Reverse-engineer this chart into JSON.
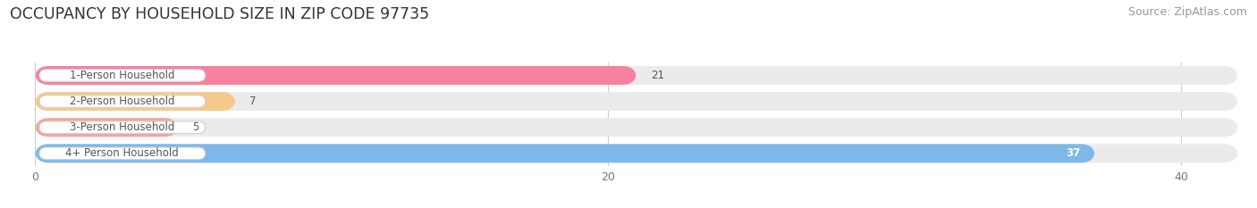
{
  "title": "OCCUPANCY BY HOUSEHOLD SIZE IN ZIP CODE 97735",
  "source": "Source: ZipAtlas.com",
  "categories": [
    "1-Person Household",
    "2-Person Household",
    "3-Person Household",
    "4+ Person Household"
  ],
  "values": [
    21,
    7,
    5,
    37
  ],
  "bar_colors": [
    "#f7819e",
    "#f5c98a",
    "#f2a898",
    "#7db8e8"
  ],
  "xlim": [
    -1,
    42
  ],
  "xticks": [
    0,
    20,
    40
  ],
  "background_color": "#ffffff",
  "row_bg_color": "#ebebeb",
  "title_fontsize": 12.5,
  "source_fontsize": 9,
  "label_fontsize": 8.5,
  "value_fontsize": 8.5,
  "figsize": [
    14.06,
    2.33
  ],
  "dpi": 100
}
